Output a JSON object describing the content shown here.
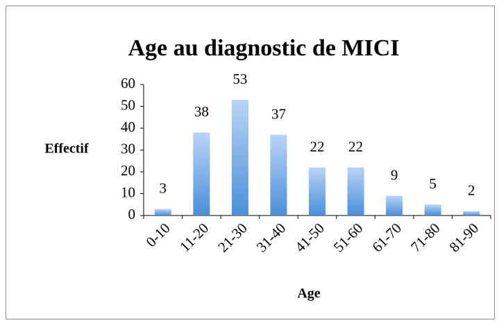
{
  "chart_data": {
    "type": "bar",
    "title": "Age au diagnostic de MICI",
    "x_label": "Age",
    "y_label": "Effectif",
    "categories": [
      "0-10",
      "11-20",
      "21-30",
      "31-40",
      "41-50",
      "51-60",
      "61-70",
      "71-80",
      "81-90"
    ],
    "values": [
      3,
      38,
      53,
      37,
      22,
      22,
      9,
      5,
      2
    ],
    "color": "#4a8fd9",
    "ylim": [
      0,
      60
    ],
    "yticks": [
      0,
      10,
      20,
      30,
      40,
      50,
      60
    ],
    "grid": false
  }
}
